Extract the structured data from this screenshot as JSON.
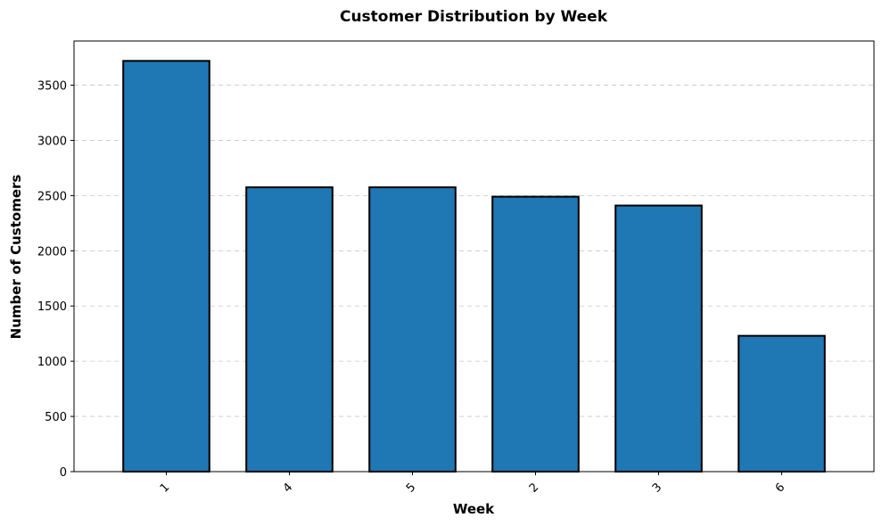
{
  "chart_data": {
    "type": "bar",
    "title": "Customer Distribution by Week",
    "xlabel": "Week",
    "ylabel": "Number of Customers",
    "categories": [
      "1",
      "4",
      "5",
      "2",
      "3",
      "6"
    ],
    "values": [
      3720,
      2575,
      2575,
      2490,
      2410,
      1230
    ],
    "ylim": [
      0,
      3900
    ],
    "yticks": [
      0,
      500,
      1000,
      1500,
      2000,
      2500,
      3000,
      3500
    ],
    "grid": "y",
    "bar_color": "#1f77b4",
    "edge_color": "#000000",
    "xtick_rotation": 45
  }
}
